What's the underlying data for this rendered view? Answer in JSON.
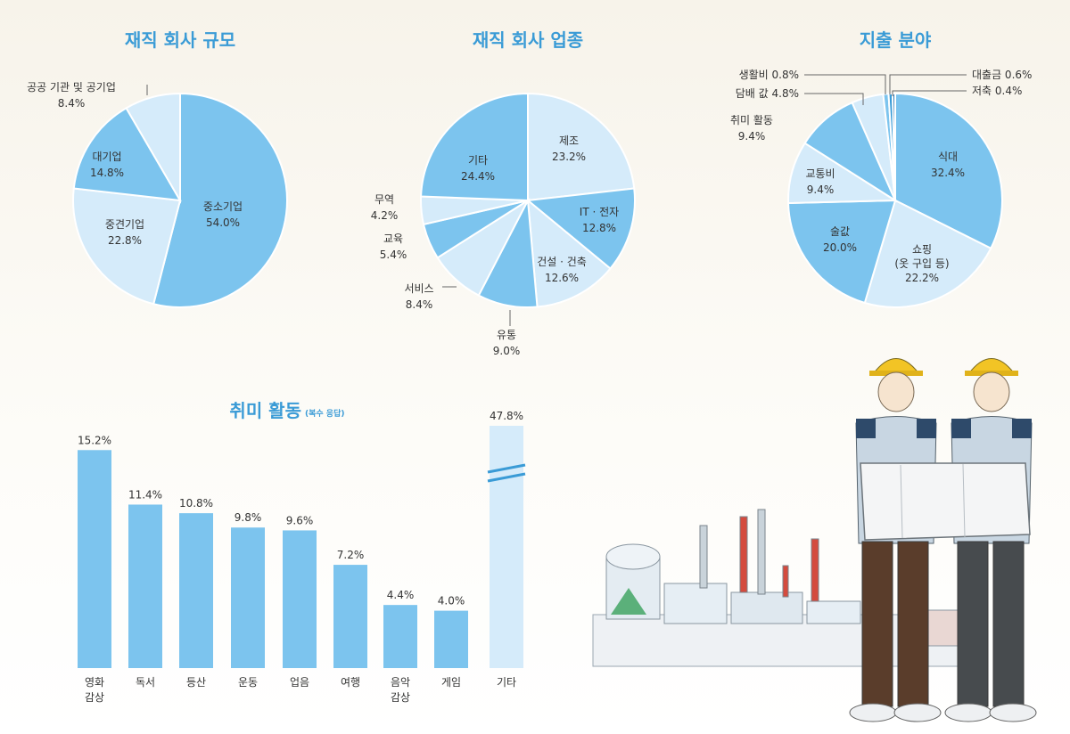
{
  "chart_data": [
    {
      "type": "pie",
      "title": "재직 회사 규모",
      "slices": [
        {
          "label": "중소기업",
          "value": "54.0%",
          "pct": 54.0,
          "color": "#7cc4ee"
        },
        {
          "label": "중견기업",
          "value": "22.8%",
          "pct": 22.8,
          "color": "#d5ebfa"
        },
        {
          "label": "대기업",
          "value": "14.8%",
          "pct": 14.8,
          "color": "#7cc4ee"
        },
        {
          "label": "공공 기관 및 공기업",
          "value": "8.4%",
          "pct": 8.4,
          "color": "#d5ebfa"
        }
      ]
    },
    {
      "type": "pie",
      "title": "재직 회사 업종",
      "slices": [
        {
          "label": "제조",
          "value": "23.2%",
          "pct": 23.2,
          "color": "#d5ebfa"
        },
        {
          "label": "IT · 전자",
          "value": "12.8%",
          "pct": 12.8,
          "color": "#7cc4ee"
        },
        {
          "label": "건설 · 건축",
          "value": "12.6%",
          "pct": 12.6,
          "color": "#d5ebfa"
        },
        {
          "label": "유통",
          "value": "9.0%",
          "pct": 9.0,
          "color": "#7cc4ee"
        },
        {
          "label": "서비스",
          "value": "8.4%",
          "pct": 8.4,
          "color": "#d5ebfa"
        },
        {
          "label": "교육",
          "value": "5.4%",
          "pct": 5.4,
          "color": "#7cc4ee"
        },
        {
          "label": "무역",
          "value": "4.2%",
          "pct": 4.2,
          "color": "#d5ebfa"
        },
        {
          "label": "기타",
          "value": "24.4%",
          "pct": 24.4,
          "color": "#7cc4ee"
        }
      ]
    },
    {
      "type": "pie",
      "title": "지출 분야",
      "slices": [
        {
          "label": "식대",
          "value": "32.4%",
          "pct": 32.4,
          "color": "#7cc4ee"
        },
        {
          "label": "쇼핑",
          "label2": "(옷 구입 등)",
          "value": "22.2%",
          "pct": 22.2,
          "color": "#d5ebfa"
        },
        {
          "label": "술값",
          "value": "20.0%",
          "pct": 20.0,
          "color": "#7cc4ee"
        },
        {
          "label": "교통비",
          "value": "9.4%",
          "pct": 9.4,
          "color": "#d5ebfa"
        },
        {
          "label": "취미 활동",
          "value": "9.4%",
          "pct": 9.4,
          "color": "#7cc4ee"
        },
        {
          "label": "담배 값",
          "value": "4.8%",
          "pct": 4.8,
          "color": "#d5ebfa"
        },
        {
          "label": "생활비",
          "value": "0.8%",
          "pct": 0.8,
          "color": "#7cc4ee"
        },
        {
          "label": "대출금",
          "value": "0.6%",
          "pct": 0.6,
          "color": "#3a9bd6"
        },
        {
          "label": "저축",
          "value": "0.4%",
          "pct": 0.4,
          "color": "#1f6fae"
        }
      ]
    },
    {
      "type": "bar",
      "title": "취미 활동",
      "subtitle": "(복수 응답)",
      "categories": [
        [
          "영화",
          "감상"
        ],
        [
          "독서"
        ],
        [
          "등산"
        ],
        [
          "운동"
        ],
        [
          "업음"
        ],
        [
          "여행"
        ],
        [
          "음악",
          "감상"
        ],
        [
          "게임"
        ],
        [
          "기타"
        ]
      ],
      "values": [
        15.2,
        11.4,
        10.8,
        9.8,
        9.6,
        7.2,
        4.4,
        4.0,
        47.8
      ],
      "value_labels": [
        "15.2%",
        "11.4%",
        "10.8%",
        "9.8%",
        "9.6%",
        "7.2%",
        "4.4%",
        "4.0%",
        "47.8%"
      ],
      "broken_axis_category": "기타",
      "colors": {
        "bar": "#7cc4ee",
        "bar_light": "#d5ebfa",
        "break": "#3a9bd6"
      }
    }
  ]
}
